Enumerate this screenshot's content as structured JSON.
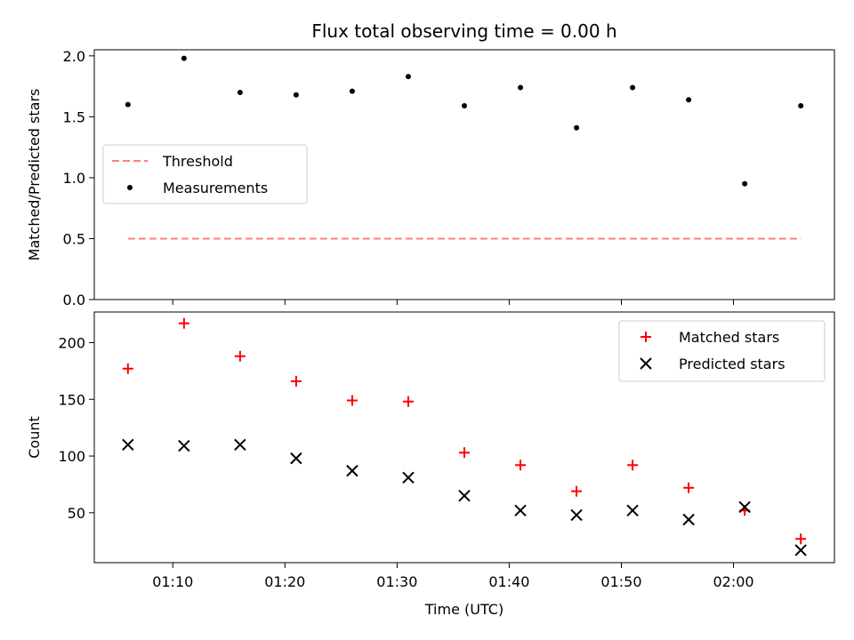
{
  "title": "Flux total observing time = 0.00 h",
  "chart_data": [
    {
      "type": "scatter",
      "ylabel": "Matched/Predicted stars",
      "xlim": [
        "01:03",
        "02:09"
      ],
      "ylim": [
        0,
        2.05
      ],
      "yticks": [
        "0.0",
        "0.5",
        "1.0",
        "1.5",
        "2.0"
      ],
      "grid": false,
      "legend_position": "center-left",
      "series": [
        {
          "name": "Threshold",
          "style": "dashed-line",
          "color": "#ff7f7f",
          "x": [
            "01:06",
            "02:06"
          ],
          "y": [
            0.5,
            0.5
          ]
        },
        {
          "name": "Measurements",
          "style": "dot",
          "color": "#000000",
          "x": [
            "01:06",
            "01:11",
            "01:16",
            "01:21",
            "01:26",
            "01:31",
            "01:36",
            "01:41",
            "01:46",
            "01:51",
            "01:56",
            "02:01",
            "02:06"
          ],
          "y": [
            1.6,
            1.98,
            1.7,
            1.68,
            1.71,
            1.83,
            1.59,
            1.74,
            1.41,
            1.74,
            1.64,
            0.95,
            1.59
          ]
        }
      ]
    },
    {
      "type": "scatter",
      "xlabel": "Time (UTC)",
      "ylabel": "Count",
      "xlim": [
        "01:03",
        "02:09"
      ],
      "ylim": [
        6,
        227
      ],
      "xticks": [
        "01:10",
        "01:20",
        "01:30",
        "01:40",
        "01:50",
        "02:00"
      ],
      "yticks": [
        "50",
        "100",
        "150",
        "200"
      ],
      "grid": false,
      "legend_position": "top-right",
      "series": [
        {
          "name": "Matched stars",
          "marker": "plus",
          "color": "#ff0000",
          "x": [
            "01:06",
            "01:11",
            "01:16",
            "01:21",
            "01:26",
            "01:31",
            "01:36",
            "01:41",
            "01:46",
            "01:51",
            "01:56",
            "02:01",
            "02:06"
          ],
          "y": [
            177,
            217,
            188,
            166,
            149,
            148,
            103,
            92,
            69,
            92,
            72,
            52,
            27
          ]
        },
        {
          "name": "Predicted stars",
          "marker": "x",
          "color": "#000000",
          "x": [
            "01:06",
            "01:11",
            "01:16",
            "01:21",
            "01:26",
            "01:31",
            "01:36",
            "01:41",
            "01:46",
            "01:51",
            "01:56",
            "02:01",
            "02:06"
          ],
          "y": [
            110,
            109,
            110,
            98,
            87,
            81,
            65,
            52,
            48,
            52,
            44,
            55,
            17
          ]
        }
      ]
    }
  ]
}
